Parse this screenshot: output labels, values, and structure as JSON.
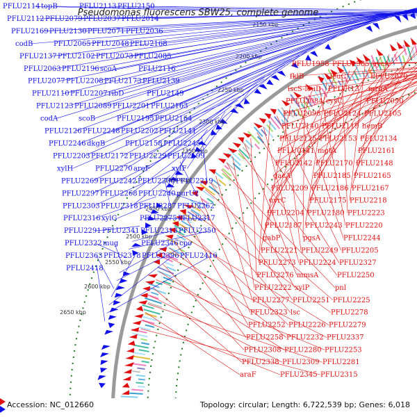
{
  "title": "Pseudomonas fluorescens SBW25, complete genome",
  "footer": {
    "accession": "Accession: NC_012660",
    "summary": "Topology: circular; Length: 6,722,539 bp; Genes: 6,018"
  },
  "colors": {
    "reverse_strand": "#1010e8",
    "forward_strand": "#e01010",
    "ring": "#9a9a9a",
    "tick": "#1a7a1a",
    "highlight_label": "#ff9ec8"
  },
  "kbp_ticks": [
    "2150 kbp",
    "2200 kbp",
    "2250 kbp",
    "2300 kbp",
    "2350 kbp",
    "2400 kbp",
    "2450 kbp",
    "2500 kbp",
    "2550 kbp",
    "2600 kbp",
    "2650 kbp"
  ],
  "left_labels": [
    "PFLU2114",
    "topB",
    "PFLU2113",
    "PFLU2150",
    "PFLU2112",
    "PFLU2079",
    "PFLU2037",
    "PFLU2014",
    "PFLU2169",
    "PFLU2130",
    "PFLU2071",
    "PFLU2036",
    "codB",
    "PFLU2065",
    "PFLU2048",
    "PFLU2168",
    "PFLU2137",
    "PFLU2102",
    "PFLU2073",
    "PFLU2085",
    "PFLU2063",
    "PFLU2196",
    "scoA",
    "PFLU2116",
    "PFLU2077",
    "PFLU2208",
    "PFLU2173",
    "PFLU2139",
    "PFLU2110",
    "PFLU2207",
    "ribD",
    "PFLU2149",
    "PFLU2123",
    "PFLU2089",
    "PFLU2201",
    "PFLU2163",
    "codA",
    "scoB",
    "PFLU2195",
    "PFLU2164",
    "PFLU2126",
    "PFLU2248",
    "PFLU2202",
    "PFLU2141",
    "PFLU2246",
    "dkgB",
    "PFLU2158",
    "PFLU2245",
    "PFLU2203",
    "PFLU2172",
    "PFLU2229",
    "PFLU2199",
    "xylH",
    "PFLU2270",
    "aroF",
    "xylF",
    "PFLU2269",
    "PFLU2242",
    "PFLU2206",
    "PFLU2219",
    "PFLU2297",
    "PFLU2268",
    "PFLU2240",
    "purU2",
    "PFLU2303",
    "PFLU2318",
    "PFLU2287",
    "PFLU2262",
    "PFLU2316",
    "xylG",
    "PFLU2275",
    "PFLU2317",
    "PFLU2291",
    "PFLU2341",
    "PFLU2313",
    "PFLU2350",
    "PFLU2322",
    "mug",
    "PFLU2346",
    "cpo",
    "PFLU2363",
    "PFLU2378",
    "PFLU2396",
    "PFLU2416",
    "PFLU2418"
  ],
  "right_labels": [
    "PFLU1958",
    "PFLU1985",
    "cycA",
    "fklB",
    "leuC",
    "PFLU2070",
    "iscS-leuD",
    "PFLUt13",
    "mrdA",
    "PFLU2084",
    "cysC",
    "PFLU2090",
    "PFLU2098",
    "PFLU2124",
    "PFLU2105",
    "PFLU2140",
    "PFLU2119",
    "hemB",
    "PFLU2125",
    "PFLU2153",
    "PFLU2134",
    "PFLU0141",
    "mgtA",
    "PFLU2161",
    "PFLU2142",
    "PFLU2170",
    "PFLU2148",
    "gacA",
    "PFLU2185",
    "PFLU2165",
    "PFLU2209",
    "PFLU2186",
    "PFLU2167",
    "uvrC",
    "PFLU2175",
    "PFLU2218",
    "PFLU2204",
    "PFLU2180",
    "PFLU2223",
    "PFLU2187",
    "PFLU2243",
    "PFLU2220",
    "gabP",
    "pgsA",
    "PFLU2244",
    "PFLU2221",
    "PFLU2249",
    "PFLU2205",
    "PFLU2273",
    "PFLU2224",
    "PFLU2327",
    "PFLU2276",
    "mmsA",
    "PFLU2250",
    "PFLU2222",
    "xylP",
    "pnl",
    "PFLU2277",
    "PFLU2251",
    "PFLU2225",
    "PFLU2323",
    "lsc",
    "PFLU2278",
    "PFLU2252",
    "PFLU2226",
    "PFLU2279",
    "PFLU2258",
    "PFLU2232",
    "PFLU2337",
    "PFLU2308",
    "PFLU2280",
    "PFLU2253",
    "PFLU2338",
    "PFLU2309",
    "PFLU2281",
    "araF",
    "PFLU2345",
    "PFLU2315"
  ]
}
